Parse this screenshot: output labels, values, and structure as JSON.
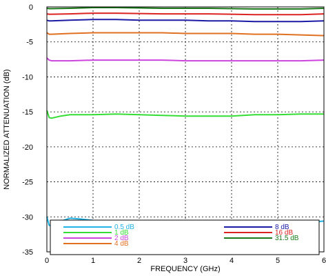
{
  "chart_data": {
    "type": "line",
    "title": "",
    "xlabel": "FREQUENCY (GHz)",
    "ylabel": "NORMALIZED ATTENUATION (dB)",
    "xlim": [
      0,
      6
    ],
    "ylim": [
      -35,
      0
    ],
    "x_ticks": [
      "0",
      "1",
      "2",
      "3",
      "4",
      "5",
      "6"
    ],
    "y_ticks": [
      "0",
      "-5",
      "-10",
      "-15",
      "-20",
      "-25",
      "-30",
      "-35"
    ],
    "grid": true,
    "legend_placement": "bottom",
    "series": [
      {
        "name": "0.5 dB",
        "color": "#1fb3e6",
        "x": [
          0.0,
          0.05,
          0.1,
          0.2,
          0.35,
          0.5,
          0.7,
          1.0,
          1.5,
          2.0,
          2.5,
          3.0,
          3.5,
          4.0,
          4.5,
          5.0,
          5.5,
          6.0
        ],
        "y": [
          -30.0,
          -31.2,
          -31.3,
          -31.0,
          -30.5,
          -30.2,
          -30.3,
          -30.5,
          -30.7,
          -30.8,
          -30.9,
          -30.9,
          -31.0,
          -31.1,
          -31.0,
          -31.0,
          -30.9,
          -30.6
        ]
      },
      {
        "name": "1 dB",
        "color": "#33dd33",
        "x": [
          0.0,
          0.05,
          0.1,
          0.3,
          0.5,
          1.0,
          1.5,
          2.0,
          2.5,
          3.0,
          3.5,
          4.0,
          4.5,
          5.0,
          5.5,
          6.0
        ],
        "y": [
          -14.8,
          -15.8,
          -15.9,
          -15.6,
          -15.4,
          -15.4,
          -15.3,
          -15.4,
          -15.5,
          -15.6,
          -15.6,
          -15.6,
          -15.4,
          -15.4,
          -15.3,
          -15.3
        ]
      },
      {
        "name": "2 dB",
        "color": "#cc44dd",
        "x": [
          0.0,
          0.05,
          0.1,
          0.5,
          1.0,
          1.5,
          2.0,
          2.5,
          3.0,
          3.5,
          4.0,
          4.5,
          5.0,
          5.5,
          6.0
        ],
        "y": [
          -7.3,
          -7.6,
          -7.7,
          -7.7,
          -7.6,
          -7.6,
          -7.6,
          -7.6,
          -7.7,
          -7.7,
          -7.7,
          -7.7,
          -7.7,
          -7.7,
          -7.6
        ]
      },
      {
        "name": "4 dB",
        "color": "#e07020",
        "x": [
          0.0,
          0.05,
          0.1,
          0.5,
          1.0,
          1.5,
          2.0,
          2.5,
          3.0,
          3.5,
          4.0,
          4.5,
          5.0,
          5.5,
          6.0
        ],
        "y": [
          -3.7,
          -3.9,
          -3.9,
          -3.8,
          -3.7,
          -3.7,
          -3.7,
          -3.7,
          -3.8,
          -3.8,
          -3.8,
          -3.9,
          -3.9,
          -4.0,
          -4.1
        ]
      },
      {
        "name": "8 dB",
        "color": "#1a1aa6",
        "x": [
          0.0,
          0.05,
          0.1,
          0.5,
          1.0,
          1.5,
          2.0,
          2.5,
          3.0,
          3.5,
          4.0,
          4.5,
          5.0,
          5.5,
          6.0
        ],
        "y": [
          -1.9,
          -2.0,
          -2.0,
          -1.9,
          -1.8,
          -1.8,
          -1.9,
          -1.9,
          -1.9,
          -2.0,
          -2.0,
          -2.1,
          -2.1,
          -2.1,
          -2.0
        ]
      },
      {
        "name": "16 dB",
        "color": "#dd2222",
        "x": [
          0.0,
          0.05,
          0.1,
          0.5,
          1.0,
          1.5,
          2.0,
          2.5,
          3.0,
          3.5,
          4.0,
          4.5,
          5.0,
          5.5,
          6.0
        ],
        "y": [
          -1.0,
          -1.05,
          -1.05,
          -1.0,
          -0.9,
          -0.9,
          -0.95,
          -1.0,
          -1.0,
          -1.0,
          -1.05,
          -1.1,
          -1.1,
          -1.1,
          -1.0
        ]
      },
      {
        "name": "31.5 dB",
        "color": "#1a7a1a",
        "x": [
          0.0,
          0.05,
          0.1,
          0.5,
          1.0,
          1.5,
          2.0,
          2.5,
          3.0,
          3.5,
          4.0,
          4.5,
          5.0,
          5.5,
          6.0
        ],
        "y": [
          -0.2,
          -0.25,
          -0.25,
          -0.2,
          -0.1,
          -0.1,
          -0.15,
          -0.2,
          -0.2,
          -0.2,
          -0.25,
          -0.3,
          -0.3,
          -0.3,
          -0.2
        ]
      }
    ]
  }
}
